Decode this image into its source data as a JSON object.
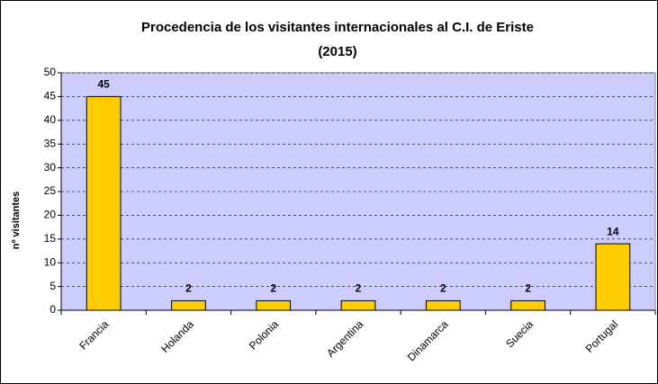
{
  "chart_data": {
    "type": "bar",
    "title": "Procedencia de los visitantes internacionales al C.I. de Eriste",
    "subtitle": "(2015)",
    "y_label": "nº visitantes",
    "categories": [
      "Francia",
      "Holanda",
      "Polonia",
      "Argentina",
      "Dinamarca",
      "Suecia",
      "Portugal"
    ],
    "values": [
      45,
      2,
      2,
      2,
      2,
      2,
      14
    ],
    "color": "#ffcc00",
    "plot_background": "#ccccff",
    "ylim": [
      0,
      50
    ],
    "yticks": [
      0,
      5,
      10,
      15,
      20,
      25,
      30,
      35,
      40,
      45,
      50
    ],
    "grid": true
  }
}
